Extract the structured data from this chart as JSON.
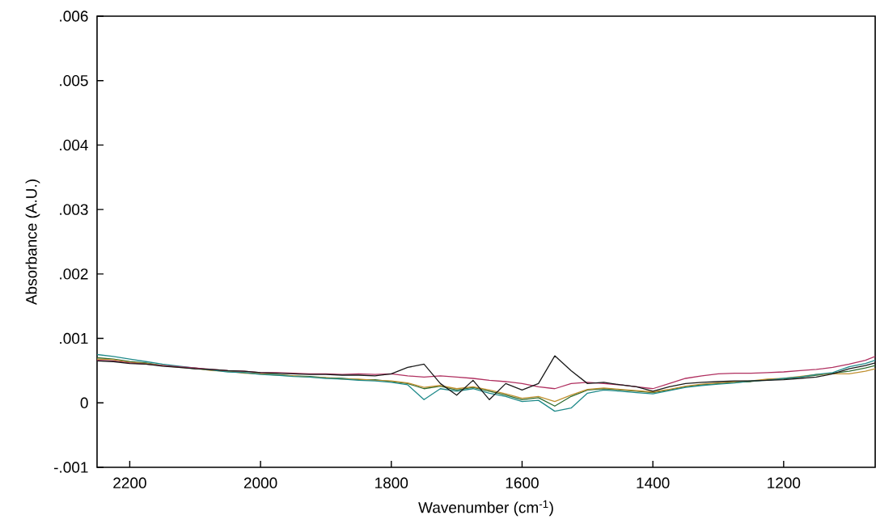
{
  "chart_data": {
    "type": "line",
    "xlabel": "Wavenumber (cm$^{-1}$)",
    "ylabel": "Absorbance (A.U.)",
    "x": [
      2250,
      2225,
      2200,
      2175,
      2150,
      2125,
      2100,
      2075,
      2050,
      2025,
      2000,
      1975,
      1950,
      1925,
      1900,
      1875,
      1850,
      1825,
      1800,
      1775,
      1750,
      1725,
      1700,
      1675,
      1650,
      1625,
      1600,
      1575,
      1550,
      1525,
      1500,
      1475,
      1450,
      1425,
      1400,
      1375,
      1350,
      1325,
      1300,
      1275,
      1250,
      1225,
      1200,
      1175,
      1150,
      1125,
      1100,
      1075,
      1060
    ],
    "series": [
      {
        "color": "#2e6b2e",
        "values": [
          0.0007,
          0.00068,
          0.00064,
          0.00062,
          0.00058,
          0.00056,
          0.00053,
          0.00051,
          0.00049,
          0.00047,
          0.00045,
          0.00044,
          0.00042,
          0.00041,
          0.00039,
          0.00038,
          0.00036,
          0.00036,
          0.00033,
          0.0003,
          0.00022,
          0.00026,
          0.0002,
          0.00024,
          0.00018,
          0.00012,
          5e-05,
          8e-05,
          -5e-05,
          0.0001,
          0.0002,
          0.00022,
          0.0002,
          0.00018,
          0.00016,
          0.0002,
          0.00025,
          0.00028,
          0.0003,
          0.00032,
          0.00033,
          0.00036,
          0.00037,
          0.0004,
          0.00043,
          0.00046,
          0.00049,
          0.00054,
          0.00058
        ]
      },
      {
        "color": "#c09030",
        "values": [
          0.00068,
          0.00067,
          0.00063,
          0.00061,
          0.00058,
          0.00055,
          0.00054,
          0.0005,
          0.00049,
          0.00046,
          0.00045,
          0.00043,
          0.00042,
          0.0004,
          0.00039,
          0.00037,
          0.00037,
          0.00035,
          0.00034,
          0.00031,
          0.00024,
          0.00027,
          0.00022,
          0.00025,
          0.0002,
          0.00014,
          7e-05,
          0.0001,
          2e-05,
          0.00012,
          0.00021,
          0.00023,
          0.00021,
          0.00019,
          0.00017,
          0.00021,
          0.00026,
          0.00029,
          0.00031,
          0.00033,
          0.00034,
          0.00037,
          0.00038,
          0.00041,
          0.00044,
          0.00045,
          0.00045,
          0.00049,
          0.00053
        ]
      },
      {
        "color": "#1f8a8a",
        "values": [
          0.00075,
          0.00072,
          0.00068,
          0.00064,
          0.0006,
          0.00057,
          0.00054,
          0.00051,
          0.00048,
          0.00047,
          0.00044,
          0.00043,
          0.00041,
          0.0004,
          0.00038,
          0.00037,
          0.00035,
          0.00034,
          0.00032,
          0.00028,
          5e-05,
          0.00022,
          0.00018,
          0.00022,
          0.00015,
          0.0001,
          2e-05,
          4e-05,
          -0.00013,
          -8e-05,
          0.00015,
          0.0002,
          0.00018,
          0.00016,
          0.00014,
          0.00019,
          0.00024,
          0.00027,
          0.00029,
          0.00031,
          0.00034,
          0.00035,
          0.00038,
          0.0004,
          0.00044,
          0.00047,
          0.00056,
          0.00061,
          0.00066
        ]
      },
      {
        "color": "#b03060",
        "values": [
          0.00066,
          0.00065,
          0.00062,
          0.0006,
          0.00058,
          0.00056,
          0.00054,
          0.00052,
          0.0005,
          0.00049,
          0.00047,
          0.00047,
          0.00046,
          0.00045,
          0.00045,
          0.00044,
          0.00045,
          0.00044,
          0.00045,
          0.00042,
          0.0004,
          0.00042,
          0.0004,
          0.00038,
          0.00035,
          0.00033,
          0.0003,
          0.00025,
          0.00022,
          0.0003,
          0.00032,
          0.0003,
          0.00028,
          0.00025,
          0.00022,
          0.0003,
          0.00038,
          0.00042,
          0.00045,
          0.00046,
          0.00046,
          0.00047,
          0.00048,
          0.0005,
          0.00052,
          0.00055,
          0.0006,
          0.00066,
          0.00072
        ]
      },
      {
        "color": "#1a1a1a",
        "values": [
          0.00065,
          0.00064,
          0.00061,
          0.0006,
          0.00057,
          0.00055,
          0.00053,
          0.00052,
          0.0005,
          0.00049,
          0.00047,
          0.00046,
          0.00045,
          0.00044,
          0.00044,
          0.00043,
          0.00043,
          0.00042,
          0.00045,
          0.00055,
          0.0006,
          0.0003,
          0.00012,
          0.00035,
          5e-05,
          0.0003,
          0.0002,
          0.0003,
          0.00073,
          0.0005,
          0.0003,
          0.00032,
          0.00028,
          0.00025,
          0.00018,
          0.00025,
          0.0003,
          0.00032,
          0.00033,
          0.00034,
          0.00034,
          0.00035,
          0.00036,
          0.00038,
          0.0004,
          0.00045,
          0.00053,
          0.00058,
          0.00062
        ]
      }
    ],
    "xlim": [
      2250,
      1060
    ],
    "ylim": [
      -0.001,
      0.006
    ],
    "xticks": [
      2200,
      2000,
      1800,
      1600,
      1400,
      1200
    ],
    "yticks": [
      {
        "value": -0.001,
        "label": "-.001"
      },
      {
        "value": 0,
        "label": "0"
      },
      {
        "value": 0.001,
        "label": ".001"
      },
      {
        "value": 0.002,
        "label": ".002"
      },
      {
        "value": 0.003,
        "label": ".003"
      },
      {
        "value": 0.004,
        "label": ".004"
      },
      {
        "value": 0.005,
        "label": ".005"
      },
      {
        "value": 0.006,
        "label": ".006"
      }
    ]
  }
}
